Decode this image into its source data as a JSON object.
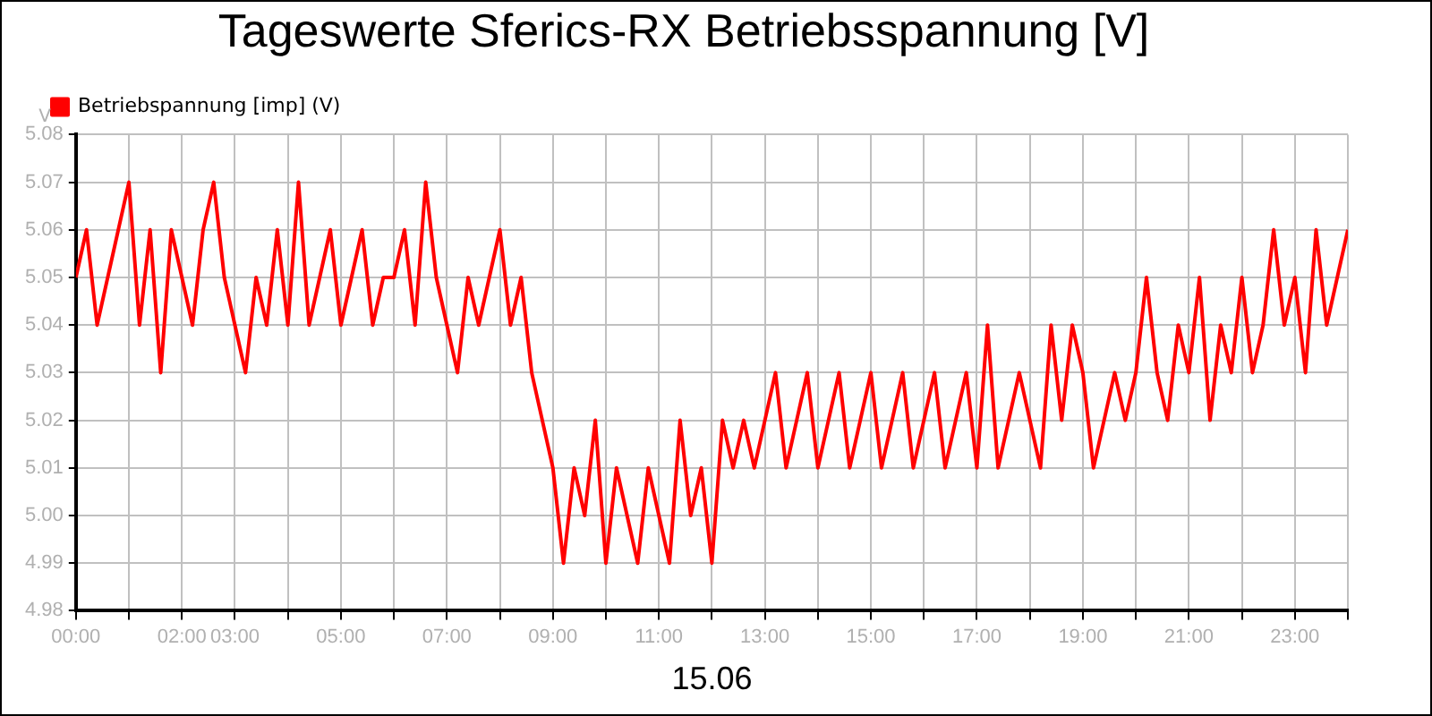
{
  "chart_data": {
    "type": "line",
    "title": "Tageswerte Sferics-RX Betriebsspannung [V]",
    "xlabel": "15.06",
    "ylabel": "V",
    "x": [
      0,
      0.2,
      0.4,
      0.6,
      0.8,
      1,
      1.2,
      1.4,
      1.6,
      1.8,
      2,
      2.2,
      2.4,
      2.6,
      2.8,
      3,
      3.2,
      3.4,
      3.6,
      3.8,
      4,
      4.2,
      4.4,
      4.6,
      4.8,
      5,
      5.2,
      5.4,
      5.6,
      5.8,
      6,
      6.2,
      6.4,
      6.6,
      6.8,
      7,
      7.2,
      7.4,
      7.6,
      7.8,
      8,
      8.2,
      8.4,
      8.6,
      8.8,
      9,
      9.2,
      9.4,
      9.6,
      9.8,
      10,
      10.2,
      10.4,
      10.6,
      10.8,
      11,
      11.2,
      11.4,
      11.6,
      11.8,
      12,
      12.2,
      12.4,
      12.6,
      12.8,
      13,
      13.2,
      13.4,
      13.6,
      13.8,
      14,
      14.2,
      14.4,
      14.6,
      14.8,
      15,
      15.2,
      15.4,
      15.6,
      15.8,
      16,
      16.2,
      16.4,
      16.6,
      16.8,
      17,
      17.2,
      17.4,
      17.6,
      17.8,
      18,
      18.2,
      18.4,
      18.6,
      18.8,
      19,
      19.2,
      19.4,
      19.6,
      19.8,
      20,
      20.2,
      20.4,
      20.6,
      20.8,
      21,
      21.2,
      21.4,
      21.6,
      21.8,
      22,
      22.2,
      22.4,
      22.6,
      22.8,
      23,
      23.2,
      23.4,
      23.6,
      23.8,
      24
    ],
    "series": [
      {
        "name": "Betriebspannung [imp] (V)",
        "color": "#ff0000",
        "values": [
          5.05,
          5.06,
          5.04,
          5.05,
          5.06,
          5.07,
          5.04,
          5.06,
          5.03,
          5.06,
          5.05,
          5.04,
          5.06,
          5.07,
          5.05,
          5.04,
          5.03,
          5.05,
          5.04,
          5.06,
          5.04,
          5.07,
          5.04,
          5.05,
          5.06,
          5.04,
          5.05,
          5.06,
          5.04,
          5.05,
          5.05,
          5.06,
          5.04,
          5.07,
          5.05,
          5.04,
          5.03,
          5.05,
          5.04,
          5.05,
          5.06,
          5.04,
          5.05,
          5.03,
          5.02,
          5.01,
          4.99,
          5.01,
          5.0,
          5.02,
          4.99,
          5.01,
          5.0,
          4.99,
          5.01,
          5.0,
          4.99,
          5.02,
          5.0,
          5.01,
          4.99,
          5.02,
          5.01,
          5.02,
          5.01,
          5.02,
          5.03,
          5.01,
          5.02,
          5.03,
          5.01,
          5.02,
          5.03,
          5.01,
          5.02,
          5.03,
          5.01,
          5.02,
          5.03,
          5.01,
          5.02,
          5.03,
          5.01,
          5.02,
          5.03,
          5.01,
          5.04,
          5.01,
          5.02,
          5.03,
          5.02,
          5.01,
          5.04,
          5.02,
          5.04,
          5.03,
          5.01,
          5.02,
          5.03,
          5.02,
          5.03,
          5.05,
          5.03,
          5.02,
          5.04,
          5.03,
          5.05,
          5.02,
          5.04,
          5.03,
          5.05,
          5.03,
          5.04,
          5.06,
          5.04,
          5.05,
          5.03,
          5.06,
          5.04,
          5.05,
          5.06
        ]
      }
    ],
    "xlim": [
      0,
      24
    ],
    "xticks": [
      {
        "value": 0,
        "label": "00:00"
      },
      {
        "value": 1,
        "label": null
      },
      {
        "value": 2,
        "label": "02:00"
      },
      {
        "value": 3,
        "label": "03:00"
      },
      {
        "value": 4,
        "label": null
      },
      {
        "value": 5,
        "label": "05:00"
      },
      {
        "value": 6,
        "label": null
      },
      {
        "value": 7,
        "label": "07:00"
      },
      {
        "value": 8,
        "label": null
      },
      {
        "value": 9,
        "label": "09:00"
      },
      {
        "value": 10,
        "label": null
      },
      {
        "value": 11,
        "label": "11:00"
      },
      {
        "value": 12,
        "label": null
      },
      {
        "value": 13,
        "label": "13:00"
      },
      {
        "value": 14,
        "label": null
      },
      {
        "value": 15,
        "label": "15:00"
      },
      {
        "value": 16,
        "label": null
      },
      {
        "value": 17,
        "label": "17:00"
      },
      {
        "value": 18,
        "label": null
      },
      {
        "value": 19,
        "label": "19:00"
      },
      {
        "value": 20,
        "label": null
      },
      {
        "value": 21,
        "label": "21:00"
      },
      {
        "value": 22,
        "label": null
      },
      {
        "value": 23,
        "label": "23:00"
      },
      {
        "value": 24,
        "label": null
      }
    ],
    "ylim": [
      4.98,
      5.08
    ],
    "yticks": [
      4.98,
      4.99,
      {
        "value": 5.0,
        "label": "5.00"
      },
      5.01,
      5.02,
      5.03,
      5.04,
      5.05,
      5.06,
      5.07,
      5.08
    ],
    "grid": true,
    "legend": "top left",
    "marker": "none",
    "line_style": "solid"
  }
}
